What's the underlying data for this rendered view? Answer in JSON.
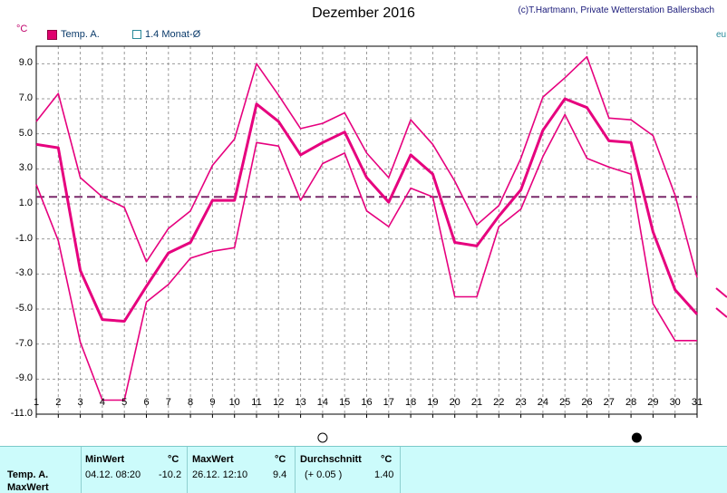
{
  "header": {
    "title": "Dezember 2016",
    "credit": "(c)T.Hartmann, Private Wetterstation Ballersbach",
    "unit": "°C"
  },
  "legend": [
    {
      "label": "Temp. A.",
      "style": "filled"
    },
    {
      "label": "1.4 Monat-Ø",
      "style": "outline"
    }
  ],
  "right_axis_fragment": "eu",
  "colors": {
    "series": "#e6007e",
    "average_line": "#7a2a6a",
    "grid": "#999999",
    "panel_bg": "#ccfbfb"
  },
  "chart_data": {
    "type": "line",
    "title": "Dezember 2016",
    "ylabel": "°C",
    "ylim": [
      -11,
      10
    ],
    "yticks": [
      "9.0",
      "7.0",
      "5.0",
      "3.0",
      "1.0",
      "-1.0",
      "-3.0",
      "-5.0",
      "-7.0",
      "-9.0",
      "-11.0"
    ],
    "x": [
      "1",
      "2",
      "3",
      "4",
      "5",
      "6",
      "7",
      "8",
      "9",
      "10",
      "11",
      "12",
      "13",
      "14",
      "15",
      "16",
      "17",
      "18",
      "19",
      "20",
      "21",
      "22",
      "23",
      "24",
      "25",
      "26",
      "27",
      "28",
      "29",
      "30",
      "31"
    ],
    "grid": true,
    "series": [
      {
        "role": "max",
        "values": [
          5.7,
          7.3,
          2.5,
          1.4,
          0.8,
          -2.3,
          -0.4,
          0.6,
          3.2,
          4.7,
          9.0,
          7.2,
          5.3,
          5.6,
          6.2,
          3.9,
          2.5,
          5.8,
          4.4,
          2.3,
          -0.2,
          0.9,
          3.6,
          7.1,
          8.2,
          9.4,
          5.9,
          5.8,
          4.9,
          1.5,
          -3.2
        ]
      },
      {
        "name": "Temp. A.",
        "role": "mean",
        "values": [
          4.4,
          4.2,
          -2.8,
          -5.6,
          -5.7,
          -3.7,
          -1.8,
          -1.2,
          1.2,
          1.2,
          6.7,
          5.7,
          3.8,
          4.5,
          5.1,
          2.5,
          1.1,
          3.8,
          2.7,
          -1.2,
          -1.4,
          0.3,
          1.8,
          5.2,
          7.0,
          6.5,
          4.6,
          4.5,
          -0.6,
          -3.9,
          -5.3
        ]
      },
      {
        "role": "min",
        "values": [
          2.1,
          -1.1,
          -6.9,
          -10.2,
          -10.2,
          -4.6,
          -3.6,
          -2.1,
          -1.7,
          -1.5,
          4.5,
          4.3,
          1.2,
          3.3,
          3.9,
          0.6,
          -0.3,
          1.9,
          1.4,
          -4.3,
          -4.3,
          -0.3,
          0.7,
          3.7,
          6.1,
          3.6,
          3.1,
          2.7,
          -4.7,
          -6.8,
          -6.8
        ]
      }
    ],
    "reference_line": {
      "name": "1.4 Monat-Ø",
      "value": 1.4
    },
    "markers": [
      {
        "day": "14",
        "symbol": "open-circle"
      },
      {
        "day": "29",
        "symbol": "filled-circle"
      }
    ]
  },
  "stats_panel": {
    "row_label": "Temp. A.",
    "row_label_2": "MaxWert",
    "min": {
      "header": "MinWert",
      "unit": "°C",
      "datetime": "04.12.  08:20",
      "value": "-10.2"
    },
    "max": {
      "header": "MaxWert",
      "unit": "°C",
      "datetime": "26.12.  12:10",
      "value": "9.4"
    },
    "avg": {
      "header": "Durchschnitt",
      "unit": "°C",
      "delta": "(+ 0.05 )",
      "value": "1.40"
    }
  }
}
